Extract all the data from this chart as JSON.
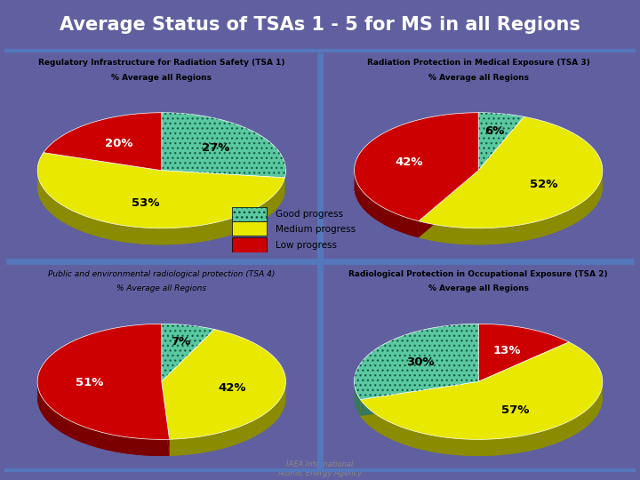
{
  "title": "Average Status of TSAs 1 - 5 for MS in all Regions",
  "title_bg": "#4a4a80",
  "title_color": "white",
  "background_color": "#6060a0",
  "panel_bg": "#f5f5f0",
  "border_color": "#5577bb",
  "charts": [
    {
      "title_line1": "Regulatory Infrastructure for Radiation Safety (TSA 1)",
      "title_line2": "% Average all Regions",
      "title_italic": false,
      "values": [
        27,
        53,
        20
      ],
      "labels": [
        "27%",
        "53%",
        "20%"
      ],
      "colors": [
        "#5ac8a0",
        "#e8e800",
        "#cc0000"
      ],
      "label_colors": [
        "black",
        "black",
        "white"
      ],
      "start_angle": 270,
      "slice_order": [
        "green",
        "yellow",
        "red"
      ]
    },
    {
      "title_line1": "Radiation Protection in Medical Exposure (TSA 3)",
      "title_line2": "% Average all Regions",
      "title_italic": false,
      "values": [
        6,
        52,
        42
      ],
      "labels": [
        "6%",
        "52%",
        "42%"
      ],
      "colors": [
        "#5ac8a0",
        "#e8e800",
        "#cc0000"
      ],
      "label_colors": [
        "black",
        "black",
        "white"
      ],
      "start_angle": 270,
      "slice_order": [
        "green",
        "yellow",
        "red"
      ]
    },
    {
      "title_line1": "Public and environmental radiological protection (TSA 4)",
      "title_line2": "% Average all Regions",
      "title_italic": true,
      "values": [
        7,
        42,
        51
      ],
      "labels": [
        "7%",
        "42%",
        "51%"
      ],
      "colors": [
        "#5ac8a0",
        "#e8e800",
        "#cc0000"
      ],
      "label_colors": [
        "black",
        "black",
        "white"
      ],
      "start_angle": 270,
      "slice_order": [
        "green",
        "yellow",
        "red"
      ]
    },
    {
      "title_line1": "Radiological Protection in Occupational Exposure (TSA 2)",
      "title_line2": "% Average all Regions",
      "title_italic": false,
      "values": [
        13,
        57,
        30
      ],
      "labels": [
        "13%",
        "57%",
        "30%"
      ],
      "colors": [
        "#cc0000",
        "#e8e800",
        "#5ac8a0"
      ],
      "label_colors": [
        "white",
        "black",
        "black"
      ],
      "start_angle": 270,
      "slice_order": [
        "red",
        "yellow",
        "green"
      ]
    }
  ],
  "legend_labels": [
    "Good progress",
    "Medium progress",
    "Low progress"
  ],
  "legend_colors": [
    "#5ac8a0",
    "#e8e800",
    "#cc0000"
  ],
  "iaea_text": "IAEA International\nAtomic Energy Agency"
}
